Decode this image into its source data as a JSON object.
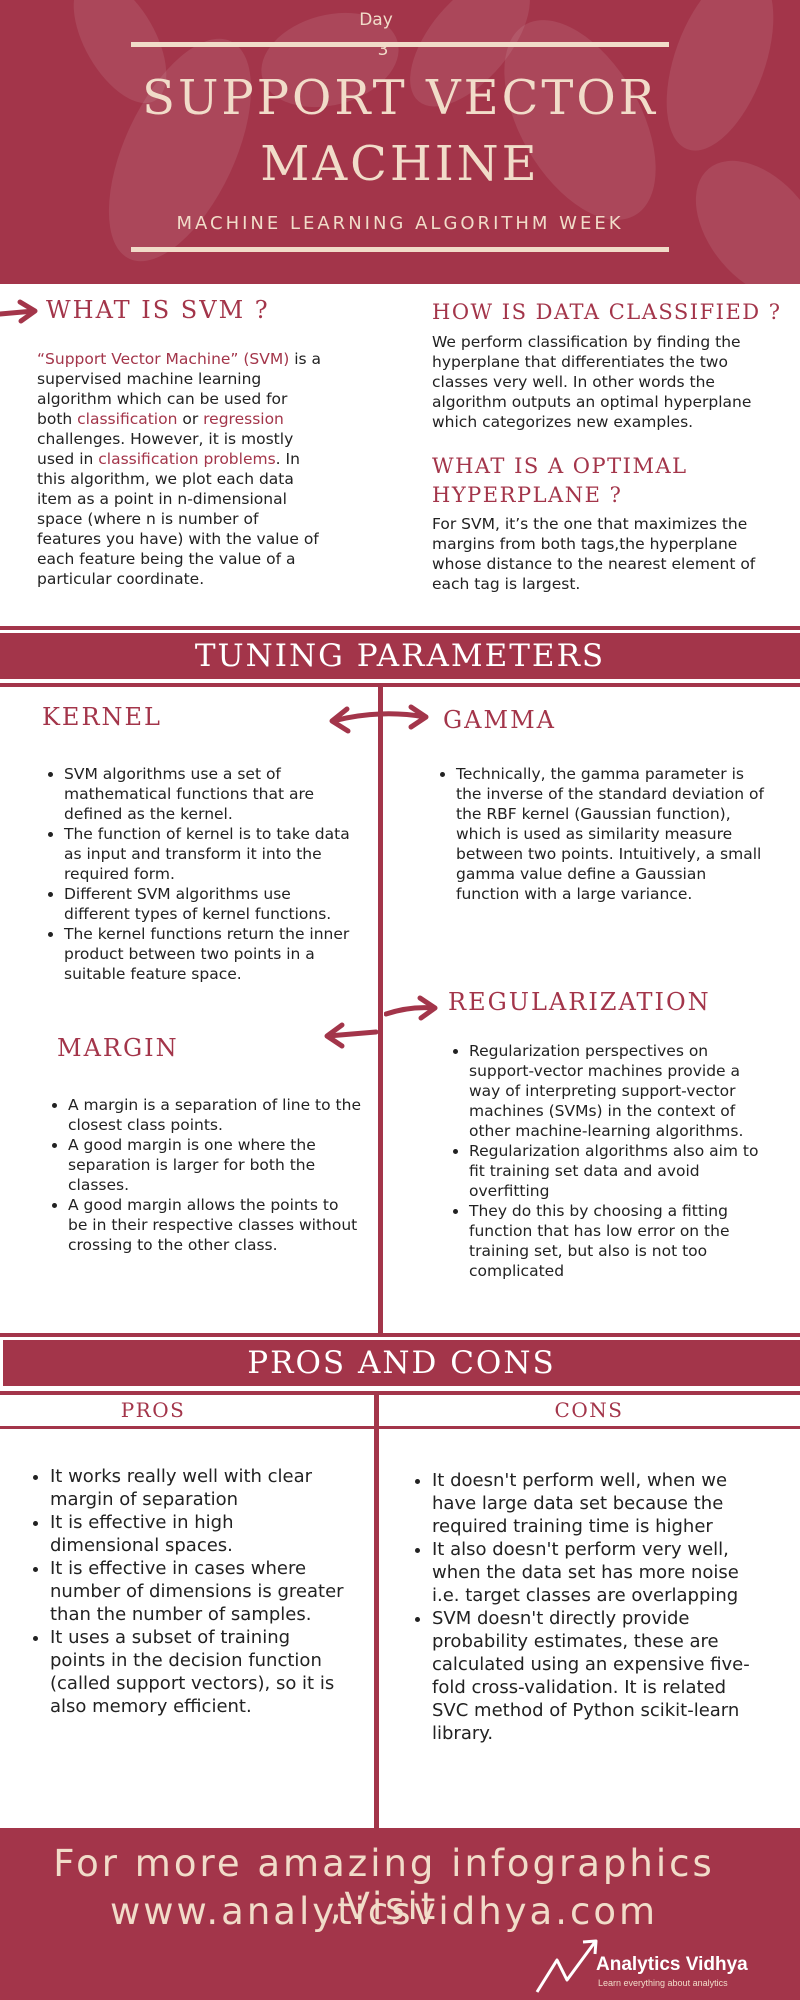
{
  "colors": {
    "accent": "#a3354a",
    "cream": "#f1dcc9",
    "white": "#ffffff"
  },
  "header": {
    "day_label": "Day",
    "day_number": "3",
    "title_line1": "SUPPORT VECTOR",
    "title_line2": "MACHINE",
    "subtitle": "MACHINE LEARNING ALGORITHM WEEK"
  },
  "what_is_svm": {
    "heading": "WHAT IS SVM ?",
    "p1_quote": "“Support Vector Machine” (SVM)",
    "p1_a": " is a supervised machine learning algorithm which can be used for both ",
    "p1_classification": "classification",
    "p1_or": " or ",
    "p1_regression": "regression",
    "p1_b": " challenges. However,  it is mostly used in ",
    "p1_problems": "classification problems",
    "p1_c": ". In this algorithm, we plot each data item as a point in n-dimensional space (where n is number of features you have) with the value of each feature being the value of a particular coordinate."
  },
  "how_classified": {
    "heading": "HOW IS DATA CLASSIFIED ?",
    "text": "We perform classification by finding the hyperplane that differentiates the two classes very well. In other words the algorithm outputs an optimal hyperplane which categorizes new examples."
  },
  "optimal_hyperplane": {
    "heading_line1": "WHAT IS A OPTIMAL",
    "heading_line2": "HYPERPLANE ?",
    "text": "For SVM, it’s the one that maximizes the margins from both tags,the hyperplane whose distance to the nearest element of each tag is largest."
  },
  "tuning": {
    "banner": "TUNING PARAMETERS",
    "kernel": {
      "heading": "KERNEL",
      "items": [
        "SVM algorithms use a set of mathematical functions that are defined as the kernel.",
        "The function of kernel is to take data as input and transform it into the required form.",
        "Different SVM algorithms use different types of kernel functions.",
        "The kernel functions return the inner product between two points in a suitable feature space."
      ]
    },
    "gamma": {
      "heading": "GAMMA",
      "items": [
        "Technically, the gamma parameter is the inverse of the standard deviation of the RBF kernel (Gaussian function), which is used as similarity measure between two points. Intuitively, a small gamma value define a Gaussian function with a large variance."
      ]
    },
    "regularization": {
      "heading": "REGULARIZATION",
      "items": [
        "Regularization perspectives on support-vector machines provide a way of interpreting support-vector machines (SVMs) in the context of other machine-learning algorithms.",
        "Regularization algorithms also aim to fit training set data and avoid overfitting",
        "They do this by choosing a fitting function that has low error on the training set, but also is not too complicated"
      ]
    },
    "margin": {
      "heading": "MARGIN",
      "items": [
        "A margin is a separation of line to the closest class points.",
        "A good margin is one where the separation is larger for both the classes.",
        "A good margin allows the points to be in their respective classes without crossing to the other class."
      ]
    }
  },
  "pros_cons": {
    "banner": "PROS AND CONS",
    "pros_heading": "PROS",
    "cons_heading": "CONS",
    "pros": [
      "It works really well with clear margin of separation",
      "It is effective in high dimensional spaces.",
      "It is effective in cases where number of dimensions is greater than the number of samples.",
      "It uses a subset of training points in the decision function (called support vectors), so it is also memory efficient."
    ],
    "cons": [
      "It doesn't perform well, when we have large data set because the required training time is higher",
      "It also doesn't perform very well, when the data set has more noise i.e. target classes are overlapping",
      "SVM doesn't directly provide probability estimates, these are calculated using an expensive five-fold cross-validation. It is related SVC method of Python scikit-learn library."
    ]
  },
  "footer": {
    "line1": "For more amazing infographics ,Visit",
    "line2": "www.analyticsvidhya.com",
    "brand": "Analytics Vidhya",
    "tagline": "Learn everything about analytics"
  }
}
